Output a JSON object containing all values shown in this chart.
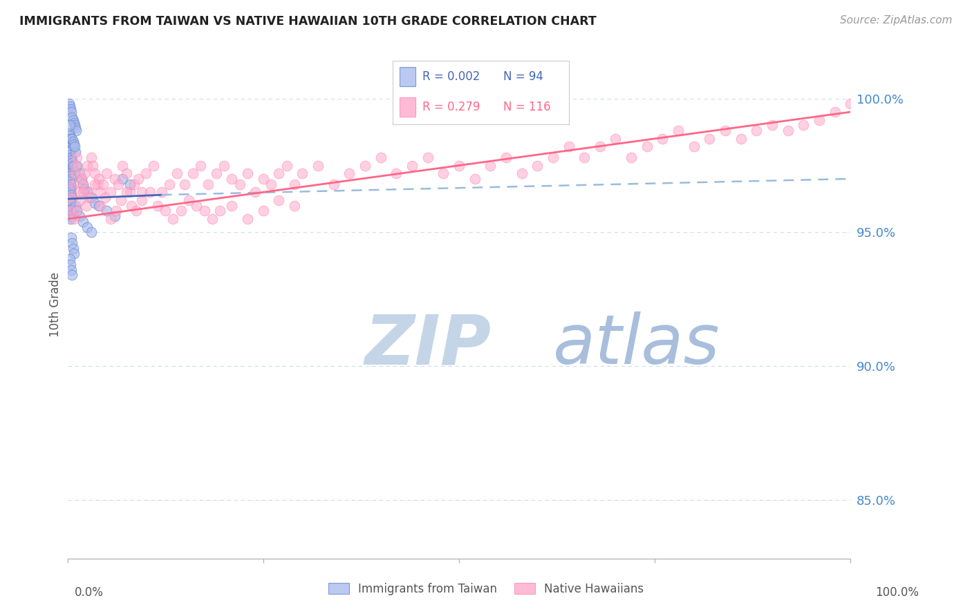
{
  "title": "IMMIGRANTS FROM TAIWAN VS NATIVE HAWAIIAN 10TH GRADE CORRELATION CHART",
  "source": "Source: ZipAtlas.com",
  "ylabel": "10th Grade",
  "ytick_values": [
    0.85,
    0.9,
    0.95,
    1.0
  ],
  "xlim": [
    0.0,
    1.0
  ],
  "ylim": [
    0.828,
    1.018
  ],
  "blue_fill": "#AABBEE",
  "blue_edge": "#6688CC",
  "pink_fill": "#FFAACC",
  "pink_edge": "#FF88AA",
  "blue_line_color": "#4466BB",
  "pink_line_color": "#FF6688",
  "dashed_line_color": "#99BBDD",
  "grid_color": "#CCDDEE",
  "title_color": "#222222",
  "right_label_color": "#4488CC",
  "watermark_zip_color": "#C8D8F0",
  "watermark_atlas_color": "#A0B8D8",
  "blue_scatter_x": [
    0.002,
    0.003,
    0.004,
    0.005,
    0.006,
    0.007,
    0.008,
    0.009,
    0.01,
    0.011,
    0.002,
    0.003,
    0.004,
    0.005,
    0.006,
    0.007,
    0.003,
    0.004,
    0.005,
    0.006,
    0.002,
    0.003,
    0.004,
    0.005,
    0.003,
    0.004,
    0.002,
    0.003,
    0.004,
    0.005,
    0.003,
    0.004,
    0.005,
    0.003,
    0.004,
    0.003,
    0.004,
    0.005,
    0.006,
    0.007,
    0.003,
    0.004,
    0.005,
    0.006,
    0.007,
    0.003,
    0.004,
    0.005,
    0.003,
    0.004,
    0.002,
    0.003,
    0.004,
    0.005,
    0.006,
    0.003,
    0.004,
    0.005,
    0.006,
    0.007,
    0.003,
    0.004,
    0.01,
    0.012,
    0.015,
    0.018,
    0.02,
    0.022,
    0.025,
    0.03,
    0.035,
    0.04,
    0.05,
    0.06,
    0.07,
    0.08,
    0.006,
    0.007,
    0.008,
    0.009,
    0.01,
    0.012,
    0.015,
    0.02,
    0.025,
    0.03,
    0.005,
    0.006,
    0.007,
    0.008,
    0.003,
    0.004,
    0.005,
    0.006
  ],
  "blue_scatter_y": [
    0.998,
    0.997,
    0.996,
    0.995,
    0.993,
    0.992,
    0.991,
    0.99,
    0.989,
    0.988,
    0.987,
    0.986,
    0.985,
    0.984,
    0.983,
    0.982,
    0.98,
    0.979,
    0.978,
    0.977,
    0.976,
    0.975,
    0.974,
    0.973,
    0.972,
    0.971,
    0.97,
    0.969,
    0.968,
    0.967,
    0.966,
    0.965,
    0.964,
    0.963,
    0.962,
    0.961,
    0.96,
    0.959,
    0.958,
    0.957,
    0.956,
    0.955,
    0.975,
    0.974,
    0.973,
    0.972,
    0.971,
    0.97,
    0.969,
    0.968,
    0.967,
    0.966,
    0.965,
    0.964,
    0.963,
    0.962,
    0.978,
    0.977,
    0.976,
    0.975,
    0.99,
    0.985,
    0.98,
    0.975,
    0.972,
    0.97,
    0.968,
    0.966,
    0.965,
    0.963,
    0.961,
    0.96,
    0.958,
    0.956,
    0.97,
    0.968,
    0.985,
    0.984,
    0.983,
    0.982,
    0.96,
    0.958,
    0.956,
    0.954,
    0.952,
    0.95,
    0.948,
    0.946,
    0.944,
    0.942,
    0.94,
    0.938,
    0.936,
    0.934
  ],
  "pink_scatter_x": [
    0.003,
    0.005,
    0.007,
    0.009,
    0.01,
    0.012,
    0.015,
    0.018,
    0.02,
    0.022,
    0.025,
    0.028,
    0.03,
    0.032,
    0.035,
    0.038,
    0.04,
    0.042,
    0.045,
    0.05,
    0.055,
    0.06,
    0.065,
    0.07,
    0.075,
    0.08,
    0.085,
    0.09,
    0.095,
    0.1,
    0.11,
    0.12,
    0.13,
    0.14,
    0.15,
    0.16,
    0.17,
    0.18,
    0.19,
    0.2,
    0.21,
    0.22,
    0.23,
    0.24,
    0.25,
    0.26,
    0.27,
    0.28,
    0.29,
    0.3,
    0.32,
    0.34,
    0.36,
    0.38,
    0.4,
    0.42,
    0.44,
    0.46,
    0.48,
    0.5,
    0.52,
    0.54,
    0.56,
    0.58,
    0.6,
    0.62,
    0.64,
    0.66,
    0.68,
    0.7,
    0.72,
    0.74,
    0.76,
    0.78,
    0.8,
    0.82,
    0.84,
    0.86,
    0.88,
    0.9,
    0.92,
    0.94,
    0.96,
    0.98,
    1.0,
    0.008,
    0.012,
    0.016,
    0.02,
    0.024,
    0.028,
    0.035,
    0.042,
    0.048,
    0.055,
    0.062,
    0.068,
    0.075,
    0.082,
    0.088,
    0.095,
    0.105,
    0.115,
    0.125,
    0.135,
    0.145,
    0.155,
    0.165,
    0.175,
    0.185,
    0.195,
    0.21,
    0.23,
    0.25,
    0.27,
    0.29
  ],
  "pink_scatter_y": [
    0.958,
    0.963,
    0.968,
    0.972,
    0.975,
    0.978,
    0.965,
    0.97,
    0.968,
    0.972,
    0.975,
    0.965,
    0.978,
    0.975,
    0.972,
    0.968,
    0.97,
    0.965,
    0.968,
    0.972,
    0.965,
    0.97,
    0.968,
    0.975,
    0.972,
    0.965,
    0.968,
    0.97,
    0.965,
    0.972,
    0.975,
    0.965,
    0.968,
    0.972,
    0.968,
    0.972,
    0.975,
    0.968,
    0.972,
    0.975,
    0.97,
    0.968,
    0.972,
    0.965,
    0.97,
    0.968,
    0.972,
    0.975,
    0.968,
    0.972,
    0.975,
    0.968,
    0.972,
    0.975,
    0.978,
    0.972,
    0.975,
    0.978,
    0.972,
    0.975,
    0.97,
    0.975,
    0.978,
    0.972,
    0.975,
    0.978,
    0.982,
    0.978,
    0.982,
    0.985,
    0.978,
    0.982,
    0.985,
    0.988,
    0.982,
    0.985,
    0.988,
    0.985,
    0.988,
    0.99,
    0.988,
    0.99,
    0.992,
    0.995,
    0.998,
    0.955,
    0.958,
    0.962,
    0.965,
    0.96,
    0.963,
    0.968,
    0.96,
    0.963,
    0.955,
    0.958,
    0.962,
    0.965,
    0.96,
    0.958,
    0.962,
    0.965,
    0.96,
    0.958,
    0.955,
    0.958,
    0.962,
    0.96,
    0.958,
    0.955,
    0.958,
    0.96,
    0.955,
    0.958,
    0.962,
    0.96
  ],
  "blue_line_x": [
    0.0,
    0.12
  ],
  "blue_line_y": [
    0.9625,
    0.964
  ],
  "dashed_line_x": [
    0.12,
    1.0
  ],
  "dashed_line_y": [
    0.964,
    0.97
  ],
  "pink_line_x": [
    0.0,
    1.0
  ],
  "pink_line_y": [
    0.955,
    0.995
  ]
}
